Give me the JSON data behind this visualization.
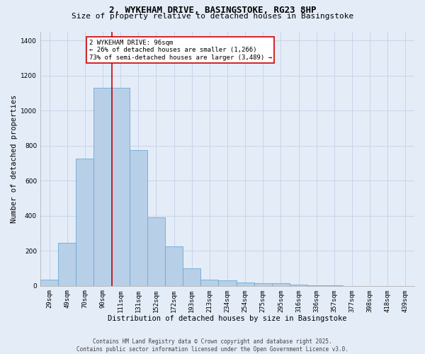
{
  "title_line1": "2, WYKEHAM DRIVE, BASINGSTOKE, RG23 8HP",
  "title_line2": "Size of property relative to detached houses in Basingstoke",
  "xlabel": "Distribution of detached houses by size in Basingstoke",
  "ylabel": "Number of detached properties",
  "categories": [
    "29sqm",
    "49sqm",
    "70sqm",
    "90sqm",
    "111sqm",
    "131sqm",
    "152sqm",
    "172sqm",
    "193sqm",
    "213sqm",
    "234sqm",
    "254sqm",
    "275sqm",
    "295sqm",
    "316sqm",
    "336sqm",
    "357sqm",
    "377sqm",
    "398sqm",
    "418sqm",
    "439sqm"
  ],
  "values": [
    35,
    245,
    725,
    1130,
    1130,
    775,
    390,
    225,
    100,
    35,
    30,
    20,
    15,
    15,
    5,
    2,
    1,
    0,
    0,
    0,
    0
  ],
  "bar_color": "#b8cfe8",
  "bar_edge_color": "#6aaad4",
  "bar_edge_width": 0.6,
  "vline_x_index": 3,
  "vline_color": "#cc0000",
  "annotation_text": "2 WYKEHAM DRIVE: 96sqm\n← 26% of detached houses are smaller (1,266)\n73% of semi-detached houses are larger (3,489) →",
  "annotation_box_color": "#ffffff",
  "annotation_box_edgecolor": "#cc0000",
  "annotation_fontsize": 6.5,
  "ylim": [
    0,
    1450
  ],
  "yticks": [
    0,
    200,
    400,
    600,
    800,
    1000,
    1200,
    1400
  ],
  "grid_color": "#c8d4e8",
  "background_color": "#e4ecf8",
  "footer": "Contains HM Land Registry data © Crown copyright and database right 2025.\nContains public sector information licensed under the Open Government Licence v3.0.",
  "title_fontsize": 9,
  "subtitle_fontsize": 8,
  "axis_label_fontsize": 7.5,
  "tick_fontsize": 6.5,
  "footer_fontsize": 5.5
}
